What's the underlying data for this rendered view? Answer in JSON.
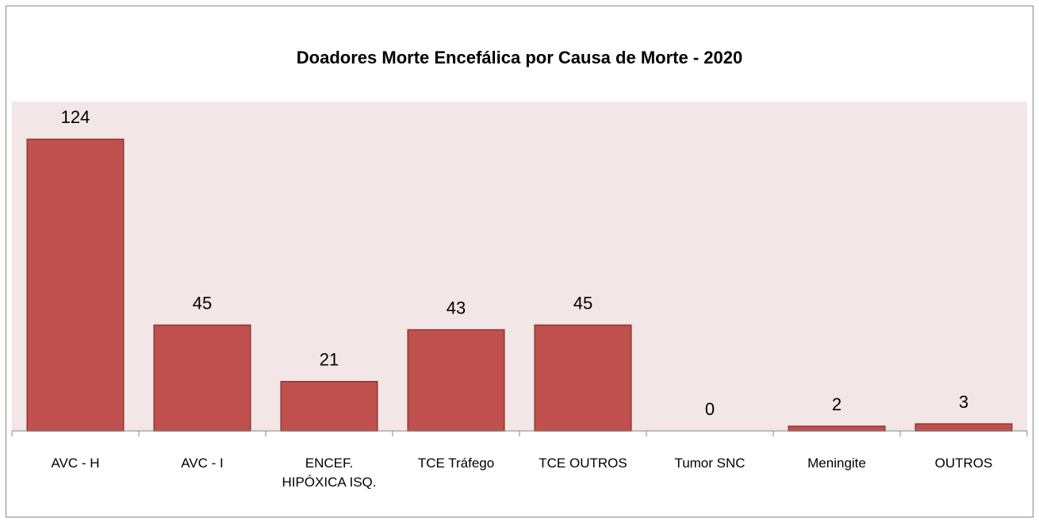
{
  "chart_data": {
    "type": "bar",
    "title": "Doadores Morte Encefálica por Causa de Morte - 2020",
    "categories": [
      "AVC - H",
      "AVC - I",
      "ENCEF. HIPÓXICA ISQ.",
      "TCE Tráfego",
      "TCE OUTROS",
      "Tumor SNC",
      "Meningite",
      "OUTROS"
    ],
    "values": [
      124,
      45,
      21,
      43,
      45,
      0,
      2,
      3
    ],
    "color": "#c0504d",
    "ylim": [
      0,
      140
    ]
  }
}
